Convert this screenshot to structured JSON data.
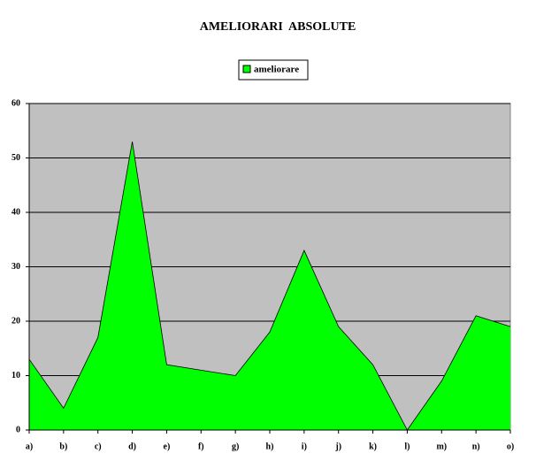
{
  "chart_data": {
    "type": "area",
    "title": "AMELIORARI  ABSOLUTE",
    "categories": [
      "a)",
      "b)",
      "c)",
      "d)",
      "e)",
      "f)",
      "g)",
      "h)",
      "i)",
      "j)",
      "k)",
      "l)",
      "m)",
      "n)",
      "o)"
    ],
    "series": [
      {
        "name": "ameliorare",
        "color": "#00ff00",
        "values": [
          13,
          4,
          17,
          53,
          12,
          11,
          10,
          18,
          33,
          19,
          12,
          0,
          9,
          21,
          19
        ]
      }
    ],
    "ylim": [
      0,
      60
    ],
    "yticks": [
      0,
      10,
      20,
      30,
      40,
      50,
      60
    ],
    "grid": true,
    "legend": "top"
  }
}
